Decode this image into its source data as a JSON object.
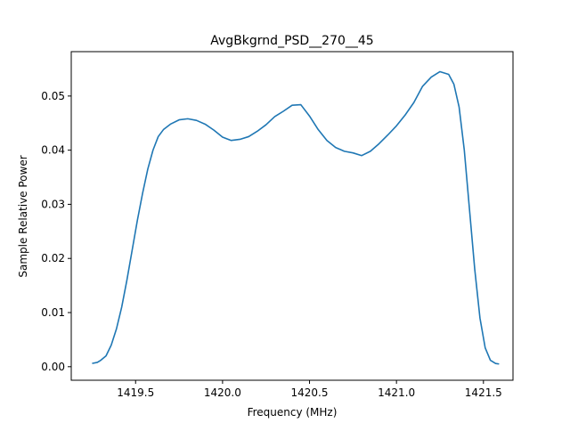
{
  "chart_data": {
    "type": "line",
    "title": "AvgBkgrnd_PSD__270__45",
    "xlabel": "Frequency (MHz)",
    "ylabel": "Sample Relative Power",
    "xlim": [
      1419.13,
      1421.67
    ],
    "ylim": [
      -0.0025,
      0.0582
    ],
    "x_ticks": [
      1419.5,
      1420.0,
      1420.5,
      1421.0,
      1421.5
    ],
    "x_tick_labels": [
      "1419.5",
      "1420.0",
      "1420.5",
      "1421.0",
      "1421.5"
    ],
    "y_ticks": [
      0.0,
      0.01,
      0.02,
      0.03,
      0.04,
      0.05
    ],
    "y_tick_labels": [
      "0.00",
      "0.01",
      "0.02",
      "0.03",
      "0.04",
      "0.05"
    ],
    "grid": false,
    "legend": "none",
    "series_color": "#1f77b4",
    "series": [
      {
        "name": "",
        "x": [
          1419.25,
          1419.28,
          1419.3,
          1419.33,
          1419.36,
          1419.39,
          1419.42,
          1419.45,
          1419.48,
          1419.51,
          1419.54,
          1419.57,
          1419.6,
          1419.63,
          1419.66,
          1419.7,
          1419.75,
          1419.8,
          1419.85,
          1419.9,
          1419.95,
          1420.0,
          1420.05,
          1420.1,
          1420.15,
          1420.2,
          1420.25,
          1420.3,
          1420.35,
          1420.4,
          1420.45,
          1420.5,
          1420.55,
          1420.6,
          1420.65,
          1420.7,
          1420.75,
          1420.8,
          1420.85,
          1420.9,
          1420.95,
          1421.0,
          1421.05,
          1421.1,
          1421.15,
          1421.2,
          1421.25,
          1421.3,
          1421.33,
          1421.36,
          1421.39,
          1421.42,
          1421.45,
          1421.48,
          1421.51,
          1421.54,
          1421.57,
          1421.59
        ],
        "y": [
          0.0006,
          0.0008,
          0.0012,
          0.002,
          0.004,
          0.007,
          0.011,
          0.016,
          0.0215,
          0.027,
          0.032,
          0.0365,
          0.04,
          0.0425,
          0.0438,
          0.0448,
          0.0456,
          0.0458,
          0.0455,
          0.0448,
          0.0437,
          0.0424,
          0.0418,
          0.042,
          0.0425,
          0.0435,
          0.0447,
          0.0462,
          0.0472,
          0.0483,
          0.0484,
          0.0463,
          0.0438,
          0.0418,
          0.0405,
          0.0398,
          0.0395,
          0.039,
          0.0398,
          0.0412,
          0.0428,
          0.0445,
          0.0465,
          0.0488,
          0.0518,
          0.0535,
          0.0545,
          0.054,
          0.0522,
          0.048,
          0.04,
          0.029,
          0.018,
          0.009,
          0.0035,
          0.0012,
          0.0006,
          0.0005
        ]
      }
    ]
  }
}
